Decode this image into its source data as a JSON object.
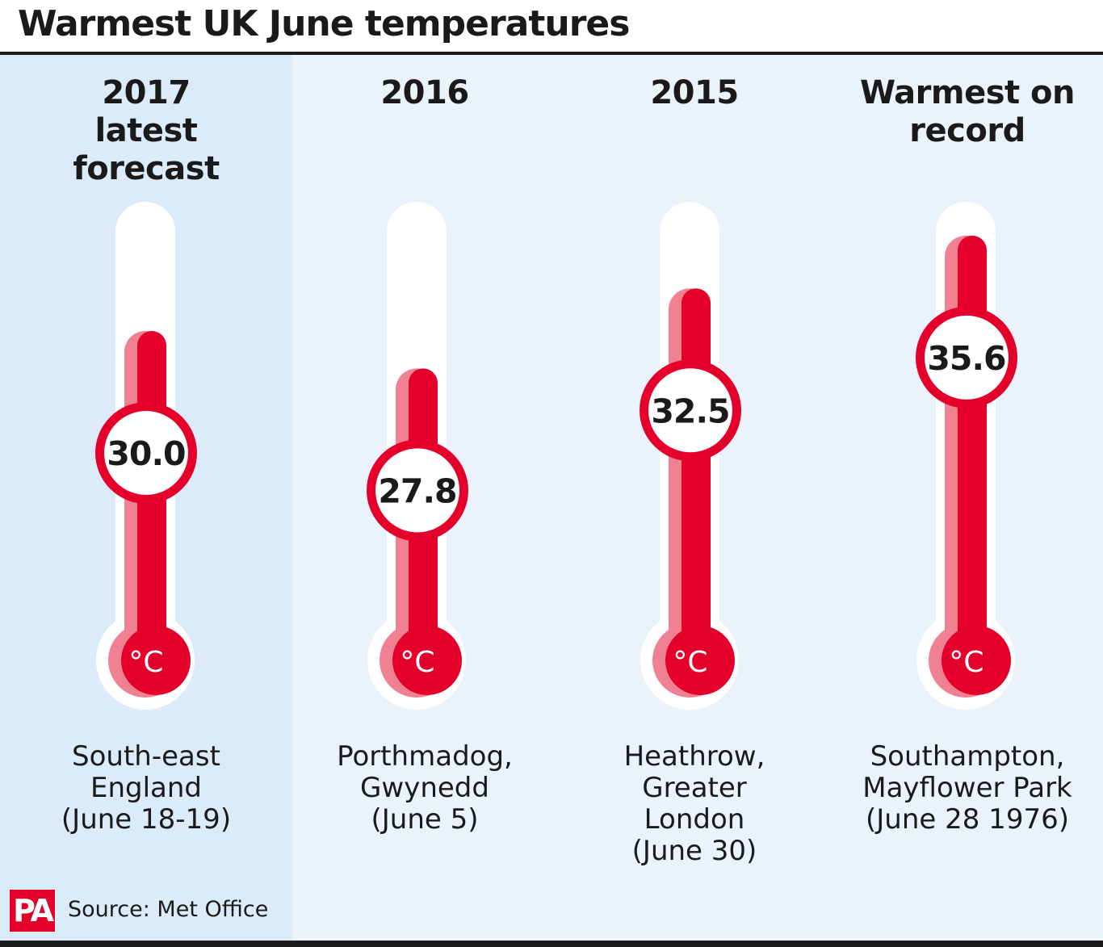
{
  "title": "Warmest UK June temperatures",
  "footer": {
    "logo_text": "PA",
    "source": "Source: Met Office"
  },
  "colors": {
    "mercury": "#e4002b",
    "mercury_light": "#f08192",
    "tube": "#ffffff",
    "highlight": "#dcebf9",
    "background": "#eaf3fc"
  },
  "chart_data": {
    "type": "bar",
    "title": "Warmest UK June temperatures",
    "unit": "°C",
    "categories": [
      "2017 latest forecast",
      "2016",
      "2015",
      "Warmest on record"
    ],
    "values": [
      30.0,
      27.8,
      32.5,
      35.6
    ],
    "value_labels": [
      "30.0",
      "27.8",
      "32.5",
      "35.6"
    ],
    "locations": [
      "South-east England (June 18-19)",
      "Porthmadog, Gwynedd (June 5)",
      "Heathrow, Greater London (June 30)",
      "Southampton, Mayflower Park (June 28 1976)"
    ],
    "headings": [
      "2017\nlatest\nforecast",
      "2016",
      "2015",
      "Warmest on\nrecord"
    ],
    "location_lines": [
      "South-east\nEngland\n(June 18-19)",
      "Porthmadog,\nGwynedd\n(June 5)",
      "Heathrow,\nGreater\nLondon\n(June 30)",
      "Southampton,\nMayflower Park\n(June 28 1976)"
    ],
    "highlighted_category": "2017 latest forecast"
  }
}
